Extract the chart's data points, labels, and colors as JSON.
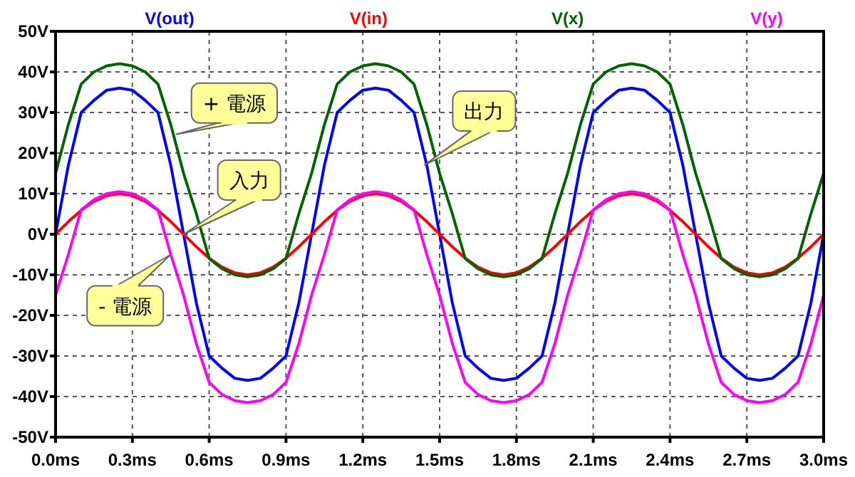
{
  "chart_data": {
    "type": "line",
    "x": [
      0,
      0.05,
      0.1,
      0.15,
      0.2,
      0.25,
      0.3,
      0.35,
      0.4,
      0.45,
      0.5,
      0.55,
      0.6,
      0.65,
      0.7,
      0.75,
      0.8,
      0.85,
      0.9,
      0.95,
      1,
      1.05,
      1.1,
      1.15,
      1.2,
      1.25,
      1.3,
      1.35,
      1.4,
      1.45,
      1.5,
      1.55,
      1.6,
      1.65,
      1.7,
      1.75,
      1.8,
      1.85,
      1.9,
      1.95,
      2,
      2.05,
      2.1,
      2.15,
      2.2,
      2.25,
      2.3,
      2.35,
      2.4,
      2.45,
      2.5,
      2.55,
      2.6,
      2.65,
      2.7,
      2.75,
      2.8,
      2.85,
      2.9,
      2.95,
      3
    ],
    "series": [
      {
        "name": "V(out)",
        "color": "#0000ff",
        "values": [
          0,
          17,
          30,
          33,
          35.5,
          36,
          35.5,
          33,
          30,
          17,
          0,
          -17,
          -30,
          -33,
          -35.5,
          -36,
          -35.5,
          -33,
          -30,
          -17,
          0,
          17,
          30,
          33,
          35.5,
          36,
          35.5,
          33,
          30,
          17,
          0,
          -17,
          -30,
          -33,
          -35.5,
          -36,
          -35.5,
          -33,
          -30,
          -17,
          0,
          17,
          30,
          33,
          35.5,
          36,
          35.5,
          33,
          30,
          17,
          0,
          -17,
          -30,
          -33,
          -35.5,
          -36,
          -35.5,
          -33,
          -30,
          -17,
          0
        ]
      },
      {
        "name": "V(in)",
        "color": "#ff0000",
        "values": [
          0,
          3.1,
          5.9,
          8.1,
          9.5,
          10,
          9.5,
          8.1,
          5.9,
          3.1,
          0,
          -3.1,
          -5.9,
          -8.1,
          -9.5,
          -10,
          -9.5,
          -8.1,
          -5.9,
          -3.1,
          0,
          3.1,
          5.9,
          8.1,
          9.5,
          10,
          9.5,
          8.1,
          5.9,
          3.1,
          0,
          -3.1,
          -5.9,
          -8.1,
          -9.5,
          -10,
          -9.5,
          -8.1,
          -5.9,
          -3.1,
          0,
          3.1,
          5.9,
          8.1,
          9.5,
          10,
          9.5,
          8.1,
          5.9,
          3.1,
          0,
          -3.1,
          -5.9,
          -8.1,
          -9.5,
          -10,
          -9.5,
          -8.1,
          -5.9,
          -3.1,
          0
        ]
      },
      {
        "name": "V(x)",
        "color": "#006400",
        "values": [
          15,
          27,
          37,
          40,
          41.5,
          42,
          41.5,
          40,
          37,
          27,
          15,
          5,
          -6,
          -8.5,
          -10,
          -10.5,
          -10,
          -8.5,
          -6,
          5,
          15,
          27,
          37,
          40,
          41.5,
          42,
          41.5,
          40,
          37,
          27,
          15,
          5,
          -6,
          -8.5,
          -10,
          -10.5,
          -10,
          -8.5,
          -6,
          5,
          15,
          27,
          37,
          40,
          41.5,
          42,
          41.5,
          40,
          37,
          27,
          15,
          5,
          -6,
          -8.5,
          -10,
          -10.5,
          -10,
          -8.5,
          -6,
          5,
          15
        ]
      },
      {
        "name": "V(y)",
        "color": "#ff00ff",
        "values": [
          -15,
          -5,
          6,
          8.5,
          10,
          10.5,
          10,
          8.5,
          6,
          -5,
          -15,
          -27,
          -36.5,
          -39.5,
          -41,
          -41.5,
          -41,
          -39.5,
          -36.5,
          -27,
          -15,
          -5,
          6,
          8.5,
          10,
          10.5,
          10,
          8.5,
          6,
          -5,
          -15,
          -27,
          -36.5,
          -39.5,
          -41,
          -41.5,
          -41,
          -39.5,
          -36.5,
          -27,
          -15,
          -5,
          6,
          8.5,
          10,
          10.5,
          10,
          8.5,
          6,
          -5,
          -15,
          -27,
          -36.5,
          -39.5,
          -41,
          -41.5,
          -41,
          -39.5,
          -36.5,
          -27,
          -15
        ]
      }
    ],
    "xlim": [
      0,
      3
    ],
    "xticks": [
      {
        "value": 0,
        "label": "0.0ms"
      },
      {
        "value": 0.3,
        "label": "0.3ms"
      },
      {
        "value": 0.6,
        "label": "0.6ms"
      },
      {
        "value": 0.9,
        "label": "0.9ms"
      },
      {
        "value": 1.2,
        "label": "1.2ms"
      },
      {
        "value": 1.5,
        "label": "1.5ms"
      },
      {
        "value": 1.8,
        "label": "1.8ms"
      },
      {
        "value": 2.1,
        "label": "2.1ms"
      },
      {
        "value": 2.4,
        "label": "2.4ms"
      },
      {
        "value": 2.7,
        "label": "2.7ms"
      },
      {
        "value": 3,
        "label": "3.0ms"
      }
    ],
    "ylim": [
      -50,
      50
    ],
    "yticks": [
      {
        "value": 50,
        "label": "50V"
      },
      {
        "value": 40,
        "label": "40V"
      },
      {
        "value": 30,
        "label": "30V"
      },
      {
        "value": 20,
        "label": "20V"
      },
      {
        "value": 10,
        "label": "10V"
      },
      {
        "value": 0,
        "label": "0V"
      },
      {
        "value": -10,
        "label": "-10V"
      },
      {
        "value": -20,
        "label": "-20V"
      },
      {
        "value": -30,
        "label": "-30V"
      },
      {
        "value": -40,
        "label": "-40V"
      },
      {
        "value": -50,
        "label": "-50V"
      }
    ],
    "grid": true,
    "legend": "top",
    "marker": "none",
    "line_style": "solid",
    "annotations": [
      {
        "text": "+ 電源",
        "x": 0.47,
        "y": 24.6
      },
      {
        "text": "入力",
        "x": 0.5,
        "y": 0
      },
      {
        "text": "出力",
        "x": 1.44,
        "y": 17
      },
      {
        "text": "- 電源",
        "x": 0.45,
        "y": -5
      }
    ]
  }
}
